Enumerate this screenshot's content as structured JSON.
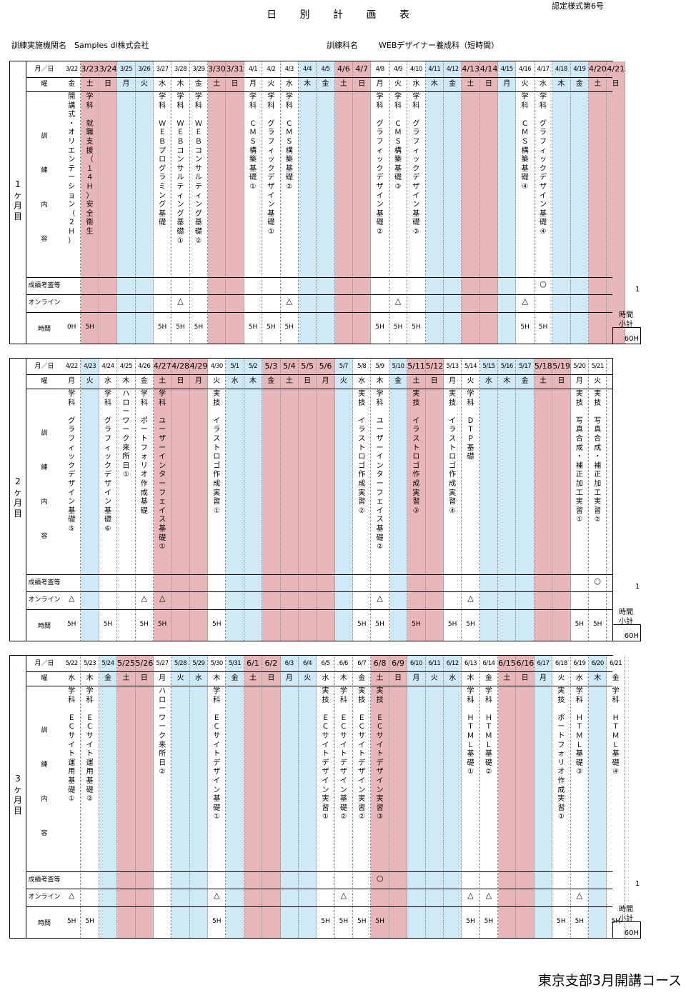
{
  "title": "日 別 計 画 表",
  "form_no": "認定様式第6号",
  "institution_label": "訓練実施機関名",
  "institution": "Samples dl株式会社",
  "course_label": "訓練科名",
  "course": "WEBデザイナー養成科（短時間）",
  "footer": "東京支部3月開講コース",
  "row_labels": {
    "date": "月／日",
    "weekday": "曜",
    "content": [
      "訓",
      "練",
      "内",
      "容"
    ],
    "grade": "成績考査等",
    "online": "オンライン",
    "time": "時間"
  },
  "subtotal_label_1": "時間",
  "subtotal_label_2": "小計",
  "colors": {
    "weekday": "#ffffff",
    "blue": "#cfe9f7",
    "pink": "#e6b6b8"
  },
  "months": [
    {
      "label": "1ヶ月目",
      "subtotal": "60H",
      "grade_count": "1",
      "days": [
        {
          "d": "3/22",
          "w": "金",
          "c": "w",
          "t": "開講式・オリエンテーション（２Ｈ）",
          "h": "0H"
        },
        {
          "d": "3/23",
          "w": "土",
          "c": "p",
          "t": "学科",
          "t2": "就職支援（１４Ｈ）",
          "t3": "安全衛生",
          "h": "5H"
        },
        {
          "d": "3/24",
          "w": "日",
          "c": "p"
        },
        {
          "d": "3/25",
          "w": "月",
          "c": "b"
        },
        {
          "d": "3/26",
          "w": "火",
          "c": "b"
        },
        {
          "d": "3/27",
          "w": "水",
          "c": "w",
          "t": "学科",
          "t2": "ＷＥＢプログラミング基礎",
          "h": "5H"
        },
        {
          "d": "3/28",
          "w": "木",
          "c": "w",
          "t": "学科",
          "t2": "ＷＥＢコンサルティング基礎①",
          "o": "△",
          "h": "5H"
        },
        {
          "d": "3/29",
          "w": "金",
          "c": "w",
          "t": "学科",
          "t2": "ＷＥＢコンサルティング基礎②",
          "h": "5H"
        },
        {
          "d": "3/30",
          "w": "土",
          "c": "p"
        },
        {
          "d": "3/31",
          "w": "日",
          "c": "p"
        },
        {
          "d": "4/1",
          "w": "月",
          "c": "w",
          "t": "学科",
          "t2": "ＣＭＳ構築基礎①",
          "h": "5H"
        },
        {
          "d": "4/2",
          "w": "火",
          "c": "w",
          "t": "学科",
          "t2": "グラフィックデザイン基礎①",
          "h": "5H"
        },
        {
          "d": "4/3",
          "w": "水",
          "c": "w",
          "t": "学科",
          "t2": "ＣＭＳ構築基礎②",
          "o": "△",
          "h": "5H"
        },
        {
          "d": "4/4",
          "w": "木",
          "c": "b"
        },
        {
          "d": "4/5",
          "w": "金",
          "c": "b"
        },
        {
          "d": "4/6",
          "w": "土",
          "c": "p"
        },
        {
          "d": "4/7",
          "w": "日",
          "c": "p"
        },
        {
          "d": "4/8",
          "w": "月",
          "c": "w",
          "t": "学科",
          "t2": "グラフィックデザイン基礎②",
          "h": "5H"
        },
        {
          "d": "4/9",
          "w": "火",
          "c": "w",
          "t": "学科",
          "t2": "ＣＭＳ構築基礎③",
          "o": "△",
          "h": "5H"
        },
        {
          "d": "4/10",
          "w": "水",
          "c": "w",
          "t": "学科",
          "t2": "グラフィックデザイン基礎③",
          "h": "5H"
        },
        {
          "d": "4/11",
          "w": "木",
          "c": "b"
        },
        {
          "d": "4/12",
          "w": "金",
          "c": "b"
        },
        {
          "d": "4/13",
          "w": "土",
          "c": "p"
        },
        {
          "d": "4/14",
          "w": "日",
          "c": "p"
        },
        {
          "d": "4/15",
          "w": "月",
          "c": "b"
        },
        {
          "d": "4/16",
          "w": "火",
          "c": "w",
          "t": "学科",
          "t2": "ＣＭＳ構築基礎④",
          "o": "△",
          "h": "5H"
        },
        {
          "d": "4/17",
          "w": "水",
          "c": "w",
          "t": "学科",
          "t2": "グラフィックデザイン基礎④",
          "g": "○",
          "h": "5H"
        },
        {
          "d": "4/18",
          "w": "木",
          "c": "b"
        },
        {
          "d": "4/19",
          "w": "金",
          "c": "b"
        },
        {
          "d": "4/20",
          "w": "土",
          "c": "p"
        },
        {
          "d": "4/21",
          "w": "日",
          "c": "p"
        }
      ]
    },
    {
      "label": "2ヶ月目",
      "subtotal": "60H",
      "grade_count": "1",
      "days": [
        {
          "d": "4/22",
          "w": "月",
          "c": "w",
          "t": "学科",
          "t2": "グラフィックデザイン基礎⑤",
          "o": "△",
          "h": "5H"
        },
        {
          "d": "4/23",
          "w": "火",
          "c": "b"
        },
        {
          "d": "4/24",
          "w": "水",
          "c": "w",
          "t": "学科",
          "t2": "グラフィックデザイン基礎⑥",
          "h": "5H"
        },
        {
          "d": "4/25",
          "w": "木",
          "c": "w",
          "t": "ハローワーク来所日①"
        },
        {
          "d": "4/26",
          "w": "金",
          "c": "w",
          "t": "学科",
          "t2": "ポートフォリオ作成基礎",
          "o": "△",
          "h": "5H"
        },
        {
          "d": "4/27",
          "w": "土",
          "c": "p",
          "t": "学科",
          "t2": "ユーザーインターフェイス基礎①",
          "o": "△",
          "h": "5H"
        },
        {
          "d": "4/28",
          "w": "日",
          "c": "p"
        },
        {
          "d": "4/29",
          "w": "月",
          "c": "p"
        },
        {
          "d": "4/30",
          "w": "火",
          "c": "w",
          "t": "実技",
          "t2": "イラストロゴ作成実習①",
          "h": "5H"
        },
        {
          "d": "5/1",
          "w": "水",
          "c": "b"
        },
        {
          "d": "5/2",
          "w": "木",
          "c": "b"
        },
        {
          "d": "5/3",
          "w": "金",
          "c": "p"
        },
        {
          "d": "5/4",
          "w": "土",
          "c": "p"
        },
        {
          "d": "5/5",
          "w": "日",
          "c": "p"
        },
        {
          "d": "5/6",
          "w": "月",
          "c": "p"
        },
        {
          "d": "5/7",
          "w": "火",
          "c": "b"
        },
        {
          "d": "5/8",
          "w": "水",
          "c": "w",
          "t": "実技",
          "t2": "イラストロゴ作成実習②",
          "h": "5H"
        },
        {
          "d": "5/9",
          "w": "木",
          "c": "w",
          "t": "学科",
          "t2": "ユーザーインターフェイス基礎②",
          "o": "△",
          "h": "5H"
        },
        {
          "d": "5/10",
          "w": "金",
          "c": "b"
        },
        {
          "d": "5/11",
          "w": "土",
          "c": "p",
          "t": "実技",
          "t2": "イラストロゴ作成実習③",
          "h": "5H"
        },
        {
          "d": "5/12",
          "w": "日",
          "c": "p"
        },
        {
          "d": "5/13",
          "w": "月",
          "c": "w",
          "t": "実技",
          "t2": "イラストロゴ作成実習④",
          "h": "5H"
        },
        {
          "d": "5/14",
          "w": "火",
          "c": "w",
          "t": "学科",
          "t2": "ＤＴＰ基礎",
          "o": "△",
          "h": "5H"
        },
        {
          "d": "5/15",
          "w": "水",
          "c": "b"
        },
        {
          "d": "5/16",
          "w": "木",
          "c": "b"
        },
        {
          "d": "5/17",
          "w": "金",
          "c": "b"
        },
        {
          "d": "5/18",
          "w": "土",
          "c": "p"
        },
        {
          "d": "5/19",
          "w": "日",
          "c": "p"
        },
        {
          "d": "5/20",
          "w": "月",
          "c": "w",
          "t": "実技",
          "t2": "写真合成・補正加工実習①",
          "h": "5H"
        },
        {
          "d": "5/21",
          "w": "火",
          "c": "w",
          "t": "実技",
          "t2": "写真合成・補正加工実習②",
          "g": "○",
          "h": "5H"
        }
      ]
    },
    {
      "label": "3ヶ月目",
      "subtotal": "60H",
      "grade_count": "1",
      "days": [
        {
          "d": "5/22",
          "w": "水",
          "c": "w",
          "t": "学科",
          "t2": "ＥＣサイト運用基礎①",
          "o": "△",
          "h": "5H"
        },
        {
          "d": "5/23",
          "w": "木",
          "c": "w",
          "t": "学科",
          "t2": "ＥＣサイト運用基礎②",
          "h": "5H"
        },
        {
          "d": "5/24",
          "w": "金",
          "c": "b"
        },
        {
          "d": "5/25",
          "w": "土",
          "c": "p"
        },
        {
          "d": "5/26",
          "w": "日",
          "c": "p"
        },
        {
          "d": "5/27",
          "w": "月",
          "c": "w",
          "t": "ハローワーク来所日②"
        },
        {
          "d": "5/28",
          "w": "火",
          "c": "b"
        },
        {
          "d": "5/29",
          "w": "水",
          "c": "b"
        },
        {
          "d": "5/30",
          "w": "木",
          "c": "w",
          "t": "学科",
          "t2": "ＥＣサイトデザイン基礎①",
          "o": "△",
          "h": "5H"
        },
        {
          "d": "5/31",
          "w": "金",
          "c": "b"
        },
        {
          "d": "6/1",
          "w": "土",
          "c": "p"
        },
        {
          "d": "6/2",
          "w": "日",
          "c": "p"
        },
        {
          "d": "6/3",
          "w": "月",
          "c": "b"
        },
        {
          "d": "6/4",
          "w": "火",
          "c": "b"
        },
        {
          "d": "6/5",
          "w": "水",
          "c": "w",
          "t": "実技",
          "t2": "ＥＣサイトデザイン実習①",
          "h": "5H"
        },
        {
          "d": "6/6",
          "w": "木",
          "c": "w",
          "t": "学科",
          "t2": "ＥＣサイトデザイン基礎②",
          "o": "△",
          "h": "5H"
        },
        {
          "d": "6/7",
          "w": "金",
          "c": "w",
          "t": "実技",
          "t2": "ＥＣサイトデザイン実習②",
          "h": "5H"
        },
        {
          "d": "6/8",
          "w": "土",
          "c": "p",
          "t": "実技",
          "t2": "ＥＣサイトデザイン実習③",
          "g": "○",
          "h": "5H"
        },
        {
          "d": "6/9",
          "w": "日",
          "c": "p"
        },
        {
          "d": "6/10",
          "w": "月",
          "c": "b"
        },
        {
          "d": "6/11",
          "w": "火",
          "c": "b"
        },
        {
          "d": "6/12",
          "w": "水",
          "c": "b"
        },
        {
          "d": "6/13",
          "w": "木",
          "c": "w",
          "t": "学科",
          "t2": "ＨＴＭＬ基礎①",
          "o": "△",
          "h": "5H"
        },
        {
          "d": "6/14",
          "w": "金",
          "c": "w",
          "t": "学科",
          "t2": "ＨＴＭＬ基礎②",
          "o": "△",
          "h": "5H"
        },
        {
          "d": "6/15",
          "w": "土",
          "c": "p"
        },
        {
          "d": "6/16",
          "w": "日",
          "c": "p"
        },
        {
          "d": "6/17",
          "w": "月",
          "c": "b"
        },
        {
          "d": "6/18",
          "w": "火",
          "c": "w",
          "t": "実技",
          "t2": "ポートフォリオ作成実習①",
          "h": "5H"
        },
        {
          "d": "6/19",
          "w": "水",
          "c": "w",
          "t": "学科",
          "t2": "ＨＴＭＬ基礎③",
          "o": "△",
          "h": "5H"
        },
        {
          "d": "6/20",
          "w": "木",
          "c": "b"
        },
        {
          "d": "6/21",
          "w": "金",
          "c": "w",
          "t": "学科",
          "t2": "ＨＴＭＬ基礎④",
          "h": "5H"
        }
      ]
    }
  ]
}
